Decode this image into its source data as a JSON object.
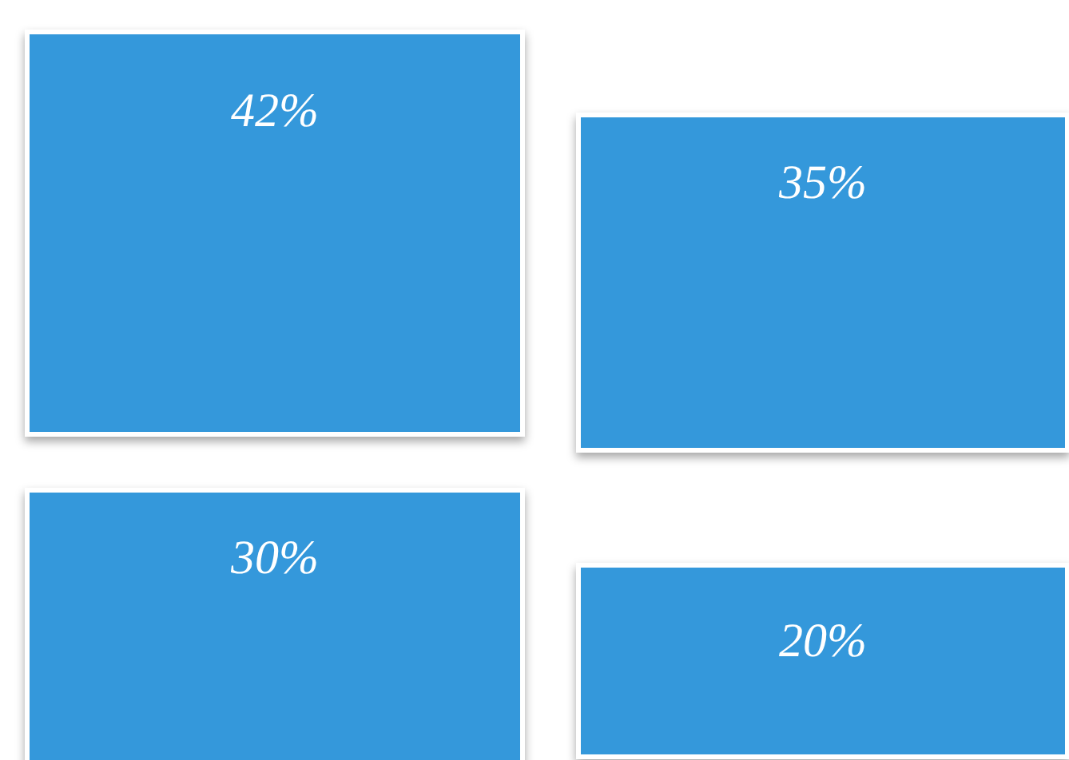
{
  "chart_data": {
    "type": "other",
    "categories": [
      null,
      null,
      null,
      null
    ],
    "values": [
      42,
      35,
      30,
      20
    ],
    "value_labels": [
      "42%",
      "35%",
      "30%",
      "20%"
    ],
    "color": "#3498db"
  }
}
